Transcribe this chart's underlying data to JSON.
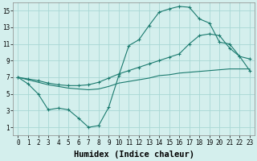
{
  "xlabel": "Humidex (Indice chaleur)",
  "bg_color": "#d4efed",
  "grid_color": "#a8d8d4",
  "line_color": "#1a7a6e",
  "curve1_x": [
    0,
    1,
    2,
    3,
    4,
    5,
    6,
    7,
    8,
    9,
    10,
    11,
    12,
    13,
    14,
    15,
    16,
    17,
    18,
    19,
    20,
    21,
    22,
    23
  ],
  "curve1_y": [
    7,
    6.2,
    5.0,
    3.1,
    3.3,
    3.1,
    2.1,
    1.0,
    1.2,
    3.4,
    7.2,
    10.8,
    11.5,
    13.2,
    14.8,
    15.2,
    15.5,
    15.4,
    14.0,
    13.5,
    11.2,
    11.0,
    9.5,
    7.8
  ],
  "curve2_x": [
    0,
    1,
    2,
    3,
    4,
    5,
    6,
    7,
    8,
    9,
    10,
    11,
    12,
    13,
    14,
    15,
    16,
    17,
    18,
    19,
    20,
    21,
    22,
    23
  ],
  "curve2_y": [
    7.0,
    6.7,
    6.4,
    6.1,
    5.9,
    5.7,
    5.6,
    5.5,
    5.6,
    5.9,
    6.3,
    6.5,
    6.7,
    6.9,
    7.2,
    7.3,
    7.5,
    7.6,
    7.7,
    7.8,
    7.9,
    8.0,
    8.0,
    8.0
  ],
  "curve3_x": [
    0,
    1,
    2,
    3,
    4,
    5,
    6,
    7,
    8,
    9,
    10,
    11,
    12,
    13,
    14,
    15,
    16,
    17,
    18,
    19,
    20,
    21,
    22,
    23
  ],
  "curve3_y": [
    7.0,
    6.8,
    6.6,
    6.3,
    6.1,
    6.0,
    6.0,
    6.1,
    6.4,
    6.9,
    7.4,
    7.8,
    8.2,
    8.6,
    9.0,
    9.4,
    9.8,
    11.0,
    12.0,
    12.2,
    12.0,
    10.5,
    9.5,
    9.2
  ],
  "xlim": [
    -0.5,
    23.5
  ],
  "ylim": [
    0,
    16
  ],
  "yticks": [
    1,
    3,
    5,
    7,
    9,
    11,
    13,
    15
  ],
  "xticks": [
    0,
    1,
    2,
    3,
    4,
    5,
    6,
    7,
    8,
    9,
    10,
    11,
    12,
    13,
    14,
    15,
    16,
    17,
    18,
    19,
    20,
    21,
    22,
    23
  ],
  "tick_fontsize": 5.5,
  "xlabel_fontsize": 7.5
}
